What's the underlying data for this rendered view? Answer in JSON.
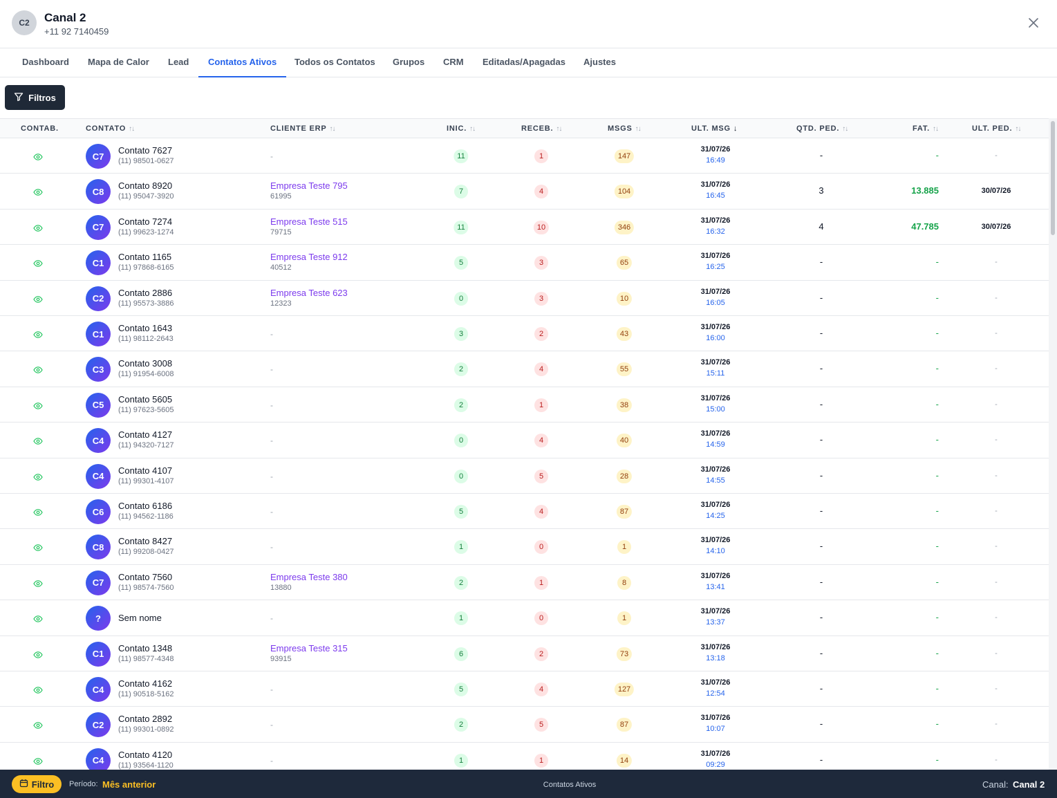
{
  "header": {
    "avatar_initials": "C2",
    "title": "Canal 2",
    "phone": "+11 92 7140459",
    "close_icon": "close-icon"
  },
  "tabs": [
    {
      "label": "Dashboard",
      "active": false
    },
    {
      "label": "Mapa de Calor",
      "active": false
    },
    {
      "label": "Lead",
      "active": false
    },
    {
      "label": "Contatos Ativos",
      "active": true
    },
    {
      "label": "Todos os Contatos",
      "active": false
    },
    {
      "label": "Grupos",
      "active": false
    },
    {
      "label": "CRM",
      "active": false
    },
    {
      "label": "Editadas/Apagadas",
      "active": false
    },
    {
      "label": "Ajustes",
      "active": false
    }
  ],
  "toolbar": {
    "filtros_label": "Filtros",
    "filter_icon": "filter-icon"
  },
  "table": {
    "columns": {
      "contab": "CONTAB.",
      "contato": "CONTATO",
      "cliente_erp": "CLIENTE ERP",
      "inic": "INIC.",
      "receb": "RECEB.",
      "msgs": "MSGS",
      "ult_msg": "ULT. MSG",
      "qtd_ped": "QTD. PED.",
      "fat": "FAT.",
      "ult_ped": "ULT. PED."
    },
    "rows": [
      {
        "initials": "C7",
        "name": "Contato 7627",
        "phone": "(11) 98501-0627",
        "erp_name": "",
        "erp_code": "",
        "inic": "11",
        "receb": "1",
        "msgs": "147",
        "date": "31/07/26",
        "time": "16:49",
        "qtd": "-",
        "fat": "-",
        "ult_ped": "-"
      },
      {
        "initials": "C8",
        "name": "Contato 8920",
        "phone": "(11) 95047-3920",
        "erp_name": "Empresa Teste 795",
        "erp_code": "61995",
        "inic": "7",
        "receb": "4",
        "msgs": "104",
        "date": "31/07/26",
        "time": "16:45",
        "qtd": "3",
        "fat": "13.885",
        "ult_ped": "30/07/26"
      },
      {
        "initials": "C7",
        "name": "Contato 7274",
        "phone": "(11) 99623-1274",
        "erp_name": "Empresa Teste 515",
        "erp_code": "79715",
        "inic": "11",
        "receb": "10",
        "msgs": "346",
        "date": "31/07/26",
        "time": "16:32",
        "qtd": "4",
        "fat": "47.785",
        "ult_ped": "30/07/26"
      },
      {
        "initials": "C1",
        "name": "Contato 1165",
        "phone": "(11) 97868-6165",
        "erp_name": "Empresa Teste 912",
        "erp_code": "40512",
        "inic": "5",
        "receb": "3",
        "msgs": "65",
        "date": "31/07/26",
        "time": "16:25",
        "qtd": "-",
        "fat": "-",
        "ult_ped": "-"
      },
      {
        "initials": "C2",
        "name": "Contato 2886",
        "phone": "(11) 95573-3886",
        "erp_name": "Empresa Teste 623",
        "erp_code": "12323",
        "inic": "0",
        "receb": "3",
        "msgs": "10",
        "date": "31/07/26",
        "time": "16:05",
        "qtd": "-",
        "fat": "-",
        "ult_ped": "-"
      },
      {
        "initials": "C1",
        "name": "Contato 1643",
        "phone": "(11) 98112-2643",
        "erp_name": "",
        "erp_code": "",
        "inic": "3",
        "receb": "2",
        "msgs": "43",
        "date": "31/07/26",
        "time": "16:00",
        "qtd": "-",
        "fat": "-",
        "ult_ped": "-"
      },
      {
        "initials": "C3",
        "name": "Contato 3008",
        "phone": "(11) 91954-6008",
        "erp_name": "",
        "erp_code": "",
        "inic": "2",
        "receb": "4",
        "msgs": "55",
        "date": "31/07/26",
        "time": "15:11",
        "qtd": "-",
        "fat": "-",
        "ult_ped": "-"
      },
      {
        "initials": "C5",
        "name": "Contato 5605",
        "phone": "(11) 97623-5605",
        "erp_name": "",
        "erp_code": "",
        "inic": "2",
        "receb": "1",
        "msgs": "38",
        "date": "31/07/26",
        "time": "15:00",
        "qtd": "-",
        "fat": "-",
        "ult_ped": "-"
      },
      {
        "initials": "C4",
        "name": "Contato 4127",
        "phone": "(11) 94320-7127",
        "erp_name": "",
        "erp_code": "",
        "inic": "0",
        "receb": "4",
        "msgs": "40",
        "date": "31/07/26",
        "time": "14:59",
        "qtd": "-",
        "fat": "-",
        "ult_ped": "-"
      },
      {
        "initials": "C4",
        "name": "Contato 4107",
        "phone": "(11) 99301-4107",
        "erp_name": "",
        "erp_code": "",
        "inic": "0",
        "receb": "5",
        "msgs": "28",
        "date": "31/07/26",
        "time": "14:55",
        "qtd": "-",
        "fat": "-",
        "ult_ped": "-"
      },
      {
        "initials": "C6",
        "name": "Contato 6186",
        "phone": "(11) 94562-1186",
        "erp_name": "",
        "erp_code": "",
        "inic": "5",
        "receb": "4",
        "msgs": "87",
        "date": "31/07/26",
        "time": "14:25",
        "qtd": "-",
        "fat": "-",
        "ult_ped": "-"
      },
      {
        "initials": "C8",
        "name": "Contato 8427",
        "phone": "(11) 99208-0427",
        "erp_name": "",
        "erp_code": "",
        "inic": "1",
        "receb": "0",
        "msgs": "1",
        "date": "31/07/26",
        "time": "14:10",
        "qtd": "-",
        "fat": "-",
        "ult_ped": "-"
      },
      {
        "initials": "C7",
        "name": "Contato 7560",
        "phone": "(11) 98574-7560",
        "erp_name": "Empresa Teste 380",
        "erp_code": "13880",
        "inic": "2",
        "receb": "1",
        "msgs": "8",
        "date": "31/07/26",
        "time": "13:41",
        "qtd": "-",
        "fat": "-",
        "ult_ped": "-"
      },
      {
        "initials": "?",
        "name": "Sem nome",
        "phone": "",
        "erp_name": "",
        "erp_code": "",
        "inic": "1",
        "receb": "0",
        "msgs": "1",
        "date": "31/07/26",
        "time": "13:37",
        "qtd": "-",
        "fat": "-",
        "ult_ped": "-"
      },
      {
        "initials": "C1",
        "name": "Contato 1348",
        "phone": "(11) 98577-4348",
        "erp_name": "Empresa Teste 315",
        "erp_code": "93915",
        "inic": "6",
        "receb": "2",
        "msgs": "73",
        "date": "31/07/26",
        "time": "13:18",
        "qtd": "-",
        "fat": "-",
        "ult_ped": "-"
      },
      {
        "initials": "C4",
        "name": "Contato 4162",
        "phone": "(11) 90518-5162",
        "erp_name": "",
        "erp_code": "",
        "inic": "5",
        "receb": "4",
        "msgs": "127",
        "date": "31/07/26",
        "time": "12:54",
        "qtd": "-",
        "fat": "-",
        "ult_ped": "-"
      },
      {
        "initials": "C2",
        "name": "Contato 2892",
        "phone": "(11) 99301-0892",
        "erp_name": "",
        "erp_code": "",
        "inic": "2",
        "receb": "5",
        "msgs": "87",
        "date": "31/07/26",
        "time": "10:07",
        "qtd": "-",
        "fat": "-",
        "ult_ped": "-"
      },
      {
        "initials": "C4",
        "name": "Contato 4120",
        "phone": "(11) 93564-1120",
        "erp_name": "",
        "erp_code": "",
        "inic": "1",
        "receb": "1",
        "msgs": "14",
        "date": "31/07/26",
        "time": "09:29",
        "qtd": "-",
        "fat": "-",
        "ult_ped": "-"
      }
    ]
  },
  "footer": {
    "filtro_label": "Filtro",
    "periodo_label": "Período:",
    "periodo_value": "Mês anterior",
    "center_label": "Contatos Ativos",
    "canal_label": "Canal:",
    "canal_value": "Canal 2"
  },
  "colors": {
    "accent": "#2563eb",
    "erp_link": "#7c3aed",
    "footer_bg": "#1e293b",
    "footer_accent": "#fbbf24",
    "positive": "#16a34a"
  }
}
